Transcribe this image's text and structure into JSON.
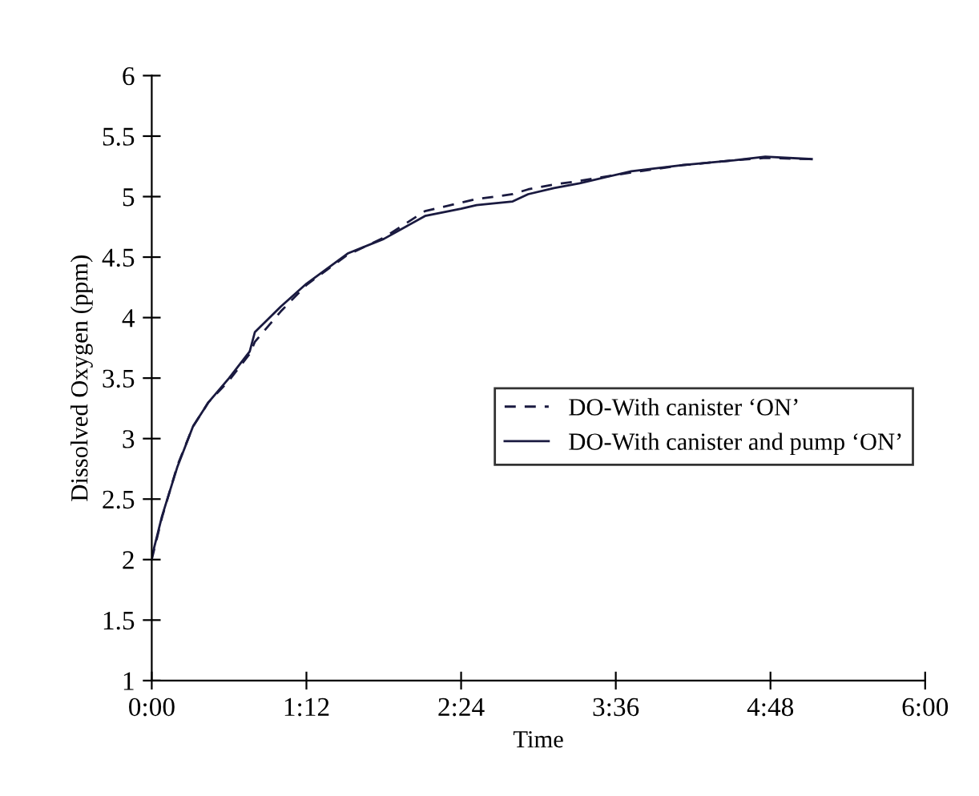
{
  "chart_data": {
    "type": "line",
    "xlabel": "Time",
    "ylabel": "Dissolved Oxygen (ppm)",
    "xlim": [
      0,
      6
    ],
    "xticks": [
      {
        "value": 0,
        "label": "0:00"
      },
      {
        "value": 1.2,
        "label": "1:12"
      },
      {
        "value": 2.4,
        "label": "2:24"
      },
      {
        "value": 3.6,
        "label": "3:36"
      },
      {
        "value": 4.8,
        "label": "4:48"
      },
      {
        "value": 6,
        "label": "6:00"
      }
    ],
    "ylim": [
      1,
      6
    ],
    "yticks": [
      1,
      1.5,
      2,
      2.5,
      3,
      3.5,
      4,
      4.5,
      5,
      5.5,
      6
    ],
    "grid": false,
    "legend": "right",
    "marker": "none",
    "series": [
      {
        "name": "DO-With canister ‘ON’",
        "color": "#1a1a40",
        "line_style": "dashed",
        "x": [
          0,
          0.08,
          0.2,
          0.32,
          0.44,
          0.6,
          0.76,
          0.8,
          1.0,
          1.2,
          1.52,
          1.8,
          2.12,
          2.4,
          2.52,
          2.8,
          2.92,
          3.12,
          3.32,
          3.72,
          4.12,
          4.52,
          4.76,
          5.12
        ],
        "values": [
          2.0,
          2.35,
          2.78,
          3.1,
          3.3,
          3.48,
          3.7,
          3.8,
          4.05,
          4.27,
          4.52,
          4.66,
          4.88,
          4.95,
          4.98,
          5.02,
          5.06,
          5.1,
          5.13,
          5.2,
          5.26,
          5.3,
          5.32,
          5.31
        ]
      },
      {
        "name": "DO-With canister and pump ‘ON’",
        "color": "#1a1a40",
        "line_style": "solid",
        "x": [
          0,
          0.08,
          0.2,
          0.32,
          0.44,
          0.6,
          0.76,
          0.8,
          1.0,
          1.2,
          1.52,
          1.8,
          2.12,
          2.4,
          2.52,
          2.8,
          2.92,
          3.12,
          3.32,
          3.72,
          4.12,
          4.52,
          4.76,
          5.12
        ],
        "values": [
          2.02,
          2.36,
          2.77,
          3.1,
          3.3,
          3.5,
          3.72,
          3.88,
          4.09,
          4.28,
          4.53,
          4.65,
          4.84,
          4.9,
          4.93,
          4.96,
          5.02,
          5.07,
          5.11,
          5.21,
          5.26,
          5.3,
          5.33,
          5.31
        ]
      }
    ]
  }
}
